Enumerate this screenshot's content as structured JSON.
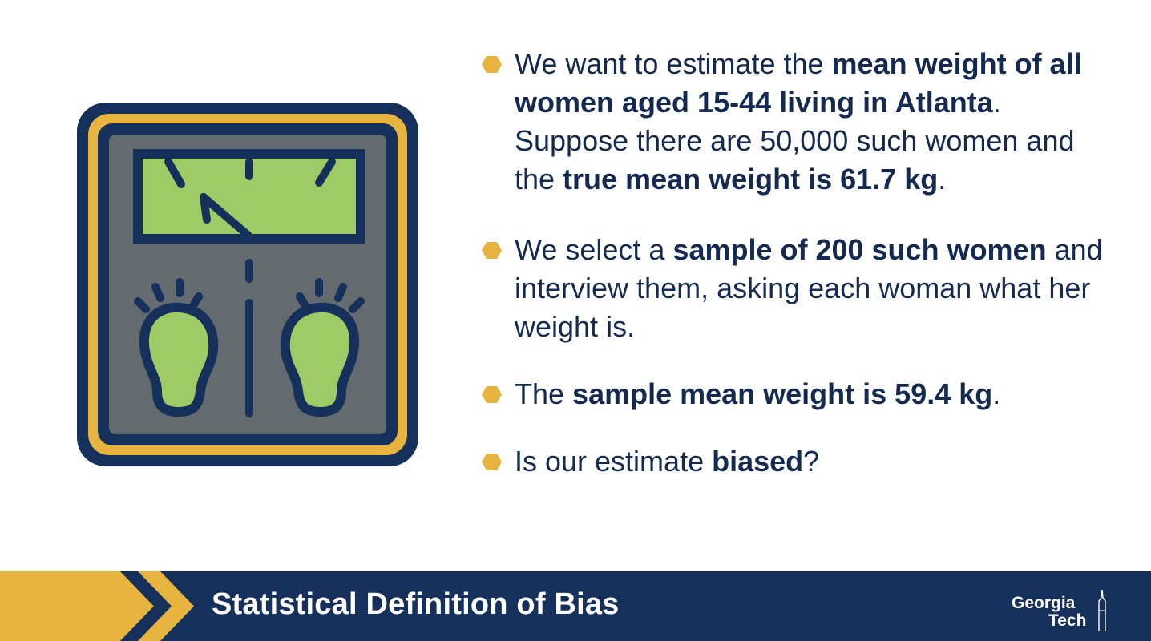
{
  "bullets": [
    {
      "segments": [
        {
          "text": "We want to estimate the ",
          "bold": false
        },
        {
          "text": "mean weight of all women aged 15-44 living in Atlanta",
          "bold": true
        },
        {
          "text": ". Suppose there are 50,000 such women and the ",
          "bold": false
        },
        {
          "text": "true mean weight is 61.7 kg",
          "bold": true
        },
        {
          "text": ".",
          "bold": false
        }
      ]
    },
    {
      "segments": [
        {
          "text": "We select a ",
          "bold": false
        },
        {
          "text": "sample of 200 such women",
          "bold": true
        },
        {
          "text": " and interview them, asking each woman what her weight is.",
          "bold": false
        }
      ]
    },
    {
      "segments": [
        {
          "text": "The ",
          "bold": false
        },
        {
          "text": "sample mean weight is 59.4 kg",
          "bold": true
        },
        {
          "text": ".",
          "bold": false
        }
      ]
    },
    {
      "segments": [
        {
          "text": "Is our estimate ",
          "bold": false
        },
        {
          "text": "biased",
          "bold": true
        },
        {
          "text": "?",
          "bold": false
        }
      ]
    }
  ],
  "footer": {
    "title": "Statistical Definition of Bias",
    "logo_line1": "Georgia",
    "logo_line2": "Tech"
  },
  "colors": {
    "navy": "#15305a",
    "gold": "#e6b43f",
    "text": "#142a50",
    "scale_body": "#636b6e",
    "display_green": "#9fcb66"
  },
  "icons": {
    "illustration": "bathroom-scale-icon",
    "bullet": "hexagon-bullet-icon"
  }
}
